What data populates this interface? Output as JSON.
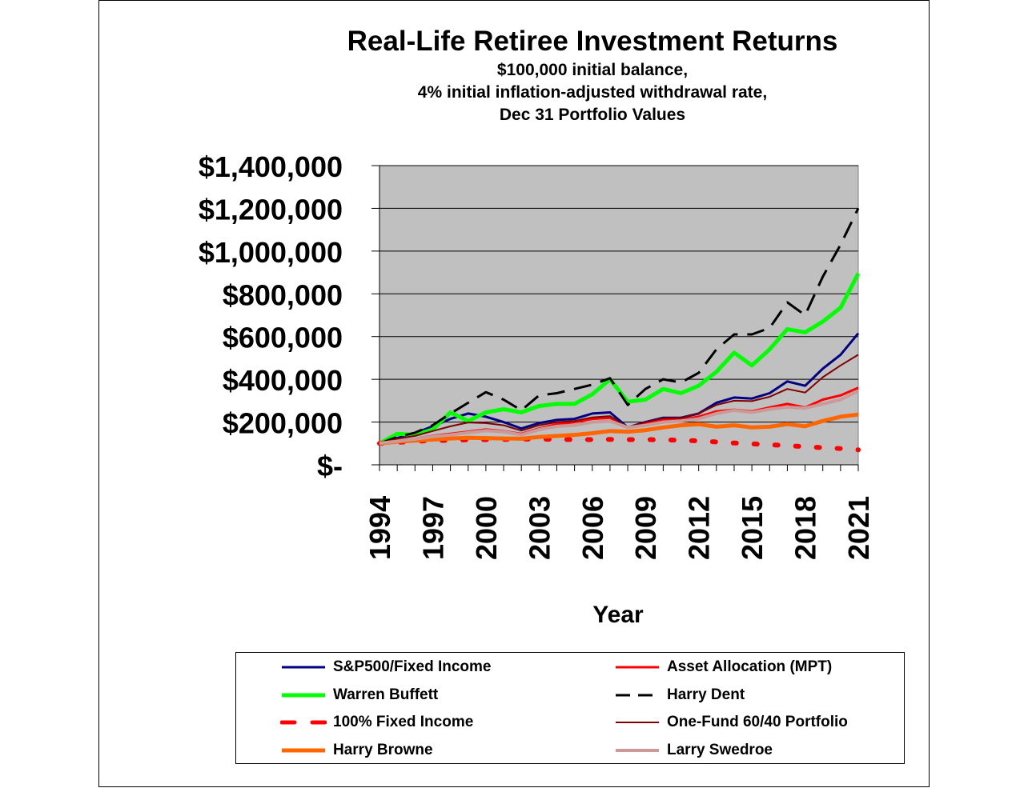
{
  "chart_data": {
    "type": "line",
    "title": "Real-Life Retiree Investment Returns",
    "subtitle": [
      "$100,000 initial balance,",
      "4%  initial inflation-adjusted withdrawal rate,",
      "Dec 31 Portfolio Values"
    ],
    "xlabel": "Year",
    "ylabel": "",
    "x": [
      1994,
      1995,
      1996,
      1997,
      1998,
      1999,
      2000,
      2001,
      2002,
      2003,
      2004,
      2005,
      2006,
      2007,
      2008,
      2009,
      2010,
      2011,
      2012,
      2013,
      2014,
      2015,
      2016,
      2017,
      2018,
      2019,
      2020,
      2021
    ],
    "x_tick_labels": [
      "1994",
      "1997",
      "2000",
      "2003",
      "2006",
      "2009",
      "2012",
      "2015",
      "2018",
      "2021"
    ],
    "ylim": [
      0,
      1400000
    ],
    "y_tick_labels": [
      "$-",
      "$200,000",
      "$400,000",
      "$600,000",
      "$800,000",
      "$1,000,000",
      "$1,200,000",
      "$1,400,000"
    ],
    "y_ticks": [
      0,
      200000,
      400000,
      600000,
      800000,
      1000000,
      1200000,
      1400000
    ],
    "grid": "horizontal",
    "plot_background": "#c0c0c0",
    "legend_position": "bottom",
    "series": [
      {
        "name": "S&P500/Fixed Income",
        "color": "#000080",
        "style": "solid",
        "width": 3,
        "values": [
          100000,
          125000,
          148000,
          180000,
          215000,
          240000,
          225000,
          200000,
          170000,
          195000,
          210000,
          215000,
          240000,
          245000,
          175000,
          200000,
          220000,
          220000,
          240000,
          290000,
          315000,
          310000,
          335000,
          390000,
          370000,
          450000,
          515000,
          615000
        ]
      },
      {
        "name": "Asset Allocation (MPT)",
        "color": "#ff0000",
        "style": "solid",
        "width": 3,
        "values": [
          100000,
          112000,
          122000,
          135000,
          145000,
          155000,
          165000,
          158000,
          145000,
          170000,
          190000,
          200000,
          215000,
          220000,
          175000,
          195000,
          210000,
          210000,
          225000,
          250000,
          258000,
          250000,
          268000,
          285000,
          268000,
          305000,
          325000,
          360000
        ]
      },
      {
        "name": "Warren Buffett",
        "color": "#00ff00",
        "style": "solid",
        "width": 5,
        "values": [
          100000,
          145000,
          140000,
          165000,
          245000,
          205000,
          245000,
          260000,
          245000,
          275000,
          285000,
          285000,
          330000,
          400000,
          295000,
          305000,
          355000,
          335000,
          370000,
          435000,
          525000,
          465000,
          540000,
          635000,
          620000,
          670000,
          735000,
          895000
        ]
      },
      {
        "name": "Harry Dent",
        "color": "#000000",
        "style": "dash",
        "width": 3,
        "values": [
          100000,
          130000,
          150000,
          185000,
          240000,
          290000,
          340000,
          305000,
          255000,
          325000,
          335000,
          355000,
          375000,
          405000,
          280000,
          355000,
          400000,
          385000,
          430000,
          540000,
          610000,
          610000,
          640000,
          760000,
          700000,
          880000,
          1030000,
          1200000
        ]
      },
      {
        "name": "100% Fixed Income",
        "color": "#ff0000",
        "style": "dot",
        "width": 6,
        "values": [
          100000,
          105000,
          110000,
          113000,
          115000,
          117000,
          118000,
          119000,
          120000,
          120000,
          119000,
          118000,
          118000,
          119000,
          118000,
          118000,
          117000,
          115000,
          112000,
          107000,
          102000,
          98000,
          94000,
          90000,
          85000,
          80000,
          76000,
          70000
        ]
      },
      {
        "name": "One-Fund 60/40 Portfolio",
        "color": "#800000",
        "style": "solid",
        "width": 2,
        "values": [
          100000,
          122000,
          135000,
          158000,
          180000,
          198000,
          195000,
          185000,
          160000,
          185000,
          200000,
          205000,
          222000,
          228000,
          175000,
          200000,
          218000,
          220000,
          240000,
          280000,
          300000,
          298000,
          318000,
          355000,
          338000,
          410000,
          465000,
          515000
        ]
      },
      {
        "name": "Harry Browne",
        "color": "#ff6600",
        "style": "solid",
        "width": 5,
        "values": [
          100000,
          108000,
          113000,
          118000,
          123000,
          126000,
          125000,
          123000,
          122000,
          130000,
          135000,
          140000,
          148000,
          158000,
          155000,
          162000,
          175000,
          185000,
          190000,
          178000,
          185000,
          175000,
          178000,
          190000,
          180000,
          205000,
          225000,
          235000
        ]
      },
      {
        "name": "Larry Swedroe",
        "color": "#cc9999",
        "style": "solid",
        "width": 4,
        "values": [
          100000,
          110000,
          120000,
          132000,
          140000,
          150000,
          160000,
          155000,
          140000,
          165000,
          180000,
          185000,
          200000,
          205000,
          175000,
          185000,
          200000,
          205000,
          215000,
          240000,
          255000,
          245000,
          260000,
          270000,
          265000,
          285000,
          305000,
          345000
        ]
      }
    ]
  }
}
